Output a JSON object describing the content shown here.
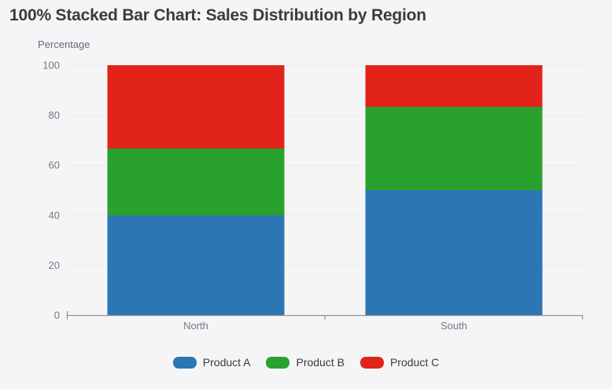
{
  "page": {
    "title": "100% Stacked Bar Chart: Sales Distribution by Region"
  },
  "chart_data": {
    "type": "bar",
    "stacked": true,
    "percent_stacked": true,
    "title": "100% Stacked Bar Chart: Sales Distribution by Region",
    "xlabel": "",
    "ylabel": "Percentage",
    "categories": [
      "North",
      "South"
    ],
    "series": [
      {
        "name": "Product A",
        "color": "#2d76b4",
        "values": [
          40,
          50
        ]
      },
      {
        "name": "Product B",
        "color": "#28a22d",
        "values": [
          26.67,
          33.33
        ]
      },
      {
        "name": "Product C",
        "color": "#e2231a",
        "values": [
          33.33,
          16.67
        ]
      }
    ],
    "ylim": [
      0,
      100
    ],
    "yticks": [
      0,
      20,
      40,
      60,
      80,
      100
    ],
    "grid": true,
    "legend_position": "bottom"
  },
  "colors": {
    "background": "#f5f5f7",
    "gridline": "#e8ebf2",
    "axis_line": "#94949c",
    "tick_label": "#75787e"
  }
}
